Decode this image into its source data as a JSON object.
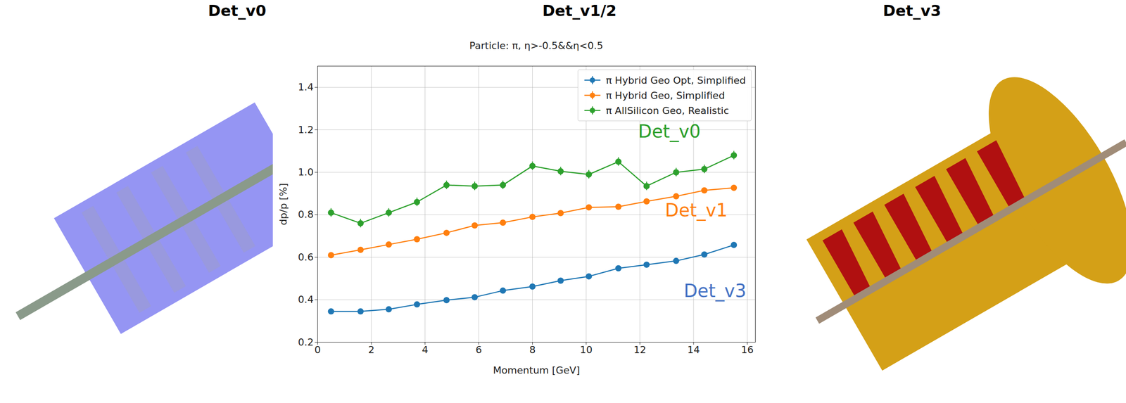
{
  "header_labels": [
    "Det_v0",
    "Det_v1/2",
    "Det_v3"
  ],
  "chart_data": {
    "type": "line",
    "title": "Particle: π, η>-0.5&&η<0.5",
    "x_label": "Momentum [GeV]",
    "y_label": "dp/p [%]",
    "x": [
      0.5,
      1.6,
      2.65,
      3.7,
      4.8,
      5.85,
      6.9,
      8.0,
      9.05,
      10.1,
      11.2,
      12.25,
      13.35,
      14.4,
      15.5
    ],
    "series": [
      {
        "name": "π Hybrid Geo Opt, Simplified",
        "color": "#1f77b4",
        "marker": "circle",
        "line_style": "solid",
        "values": [
          0.345,
          0.345,
          0.355,
          0.378,
          0.398,
          0.412,
          0.443,
          0.462,
          0.49,
          0.51,
          0.548,
          0.565,
          0.583,
          0.613,
          0.658
        ],
        "errors": [
          0.005,
          0.005,
          0.005,
          0.005,
          0.005,
          0.005,
          0.005,
          0.005,
          0.005,
          0.005,
          0.005,
          0.005,
          0.005,
          0.005,
          0.005
        ]
      },
      {
        "name": "π Hybrid Geo, Simplified",
        "color": "#ff7f0e",
        "marker": "circle",
        "line_style": "solid",
        "values": [
          0.61,
          0.635,
          0.66,
          0.685,
          0.715,
          0.75,
          0.763,
          0.79,
          0.808,
          0.835,
          0.838,
          0.863,
          0.887,
          0.915,
          0.927
        ],
        "errors": [
          0.007,
          0.007,
          0.007,
          0.007,
          0.007,
          0.007,
          0.007,
          0.007,
          0.007,
          0.007,
          0.007,
          0.007,
          0.007,
          0.007,
          0.007
        ]
      },
      {
        "name": "π AllSilicon Geo, Realistic",
        "color": "#2ca02c",
        "marker": "circle",
        "line_style": "solid",
        "values": [
          0.81,
          0.76,
          0.81,
          0.86,
          0.94,
          0.935,
          0.94,
          1.03,
          1.005,
          0.99,
          1.05,
          0.935,
          1.0,
          1.015,
          1.08
        ],
        "errors": [
          0.02,
          0.02,
          0.02,
          0.02,
          0.02,
          0.02,
          0.02,
          0.02,
          0.02,
          0.02,
          0.02,
          0.02,
          0.02,
          0.02,
          0.02
        ]
      }
    ],
    "xlim": [
      0,
      16.3
    ],
    "ylim": [
      0.2,
      1.5
    ],
    "xticks": [
      0,
      2,
      4,
      6,
      8,
      10,
      12,
      14,
      16
    ],
    "yticks": [
      0.2,
      0.4,
      0.6,
      0.8,
      {
        "value": 1,
        "label": "1.0"
      },
      1.2,
      1.4
    ],
    "grid": true,
    "legend": "upper right",
    "annotations": [
      {
        "text": "Det_v0",
        "x": 13.1,
        "y": 1.19,
        "color": "#2ca02c"
      },
      {
        "text": "Det_v1",
        "x": 14.1,
        "y": 0.82,
        "color": "#ff7f0e"
      },
      {
        "text": "Det_v3",
        "x": 14.8,
        "y": 0.44,
        "color": "#4472c4"
      }
    ]
  }
}
